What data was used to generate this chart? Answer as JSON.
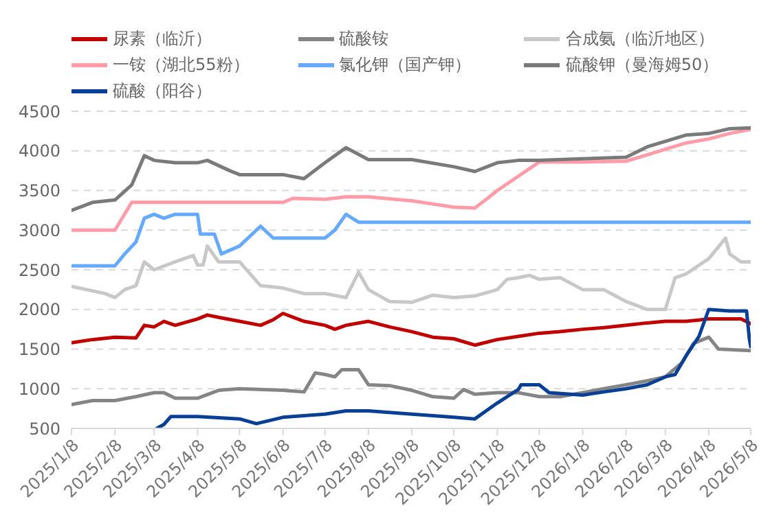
{
  "chart_data": {
    "type": "line",
    "legend": "top",
    "grid": "y",
    "line_style": "solid",
    "marker": "none",
    "xlim": [
      "2025-01-08",
      "2026-05-08"
    ],
    "xticks": [
      {
        "value": "2025-01-08",
        "label": "2025/1/8"
      },
      {
        "value": "2025-02-08",
        "label": "2025/2/8"
      },
      {
        "value": "2025-03-08",
        "label": "2025/3/8"
      },
      {
        "value": "2025-04-08",
        "label": "2025/4/8"
      },
      {
        "value": "2025-05-08",
        "label": "2025/5/8"
      },
      {
        "value": "2025-06-08",
        "label": "2025/6/8"
      },
      {
        "value": "2025-07-08",
        "label": "2025/7/8"
      },
      {
        "value": "2025-08-08",
        "label": "2025/8/8"
      },
      {
        "value": "2025-09-08",
        "label": "2025/9/8"
      },
      {
        "value": "2025-10-08",
        "label": "2025/10/8"
      },
      {
        "value": "2025-11-08",
        "label": "2025/11/8"
      },
      {
        "value": "2025-12-08",
        "label": "2025/12/8"
      },
      {
        "value": "2026-01-08",
        "label": "2026/1/8"
      },
      {
        "value": "2026-02-08",
        "label": "2026/2/8"
      },
      {
        "value": "2026-03-08",
        "label": "2026/3/8"
      },
      {
        "value": "2026-04-08",
        "label": "2026/4/8"
      },
      {
        "value": "2026-05-08",
        "label": "2026/5/8"
      }
    ],
    "ylim": [
      500,
      4500
    ],
    "yticks": [
      500,
      1000,
      1500,
      2000,
      2500,
      3000,
      3500,
      4000,
      4500
    ],
    "series": [
      {
        "name": "尿素（临沂）",
        "color": "#c00000",
        "x": [
          "2025-01-08",
          "2025-01-23",
          "2025-02-08",
          "2025-02-23",
          "2025-03-01",
          "2025-03-08",
          "2025-03-15",
          "2025-03-23",
          "2025-04-08",
          "2025-04-15",
          "2025-04-23",
          "2025-05-08",
          "2025-05-23",
          "2025-06-01",
          "2025-06-08",
          "2025-06-23",
          "2025-07-08",
          "2025-07-15",
          "2025-07-23",
          "2025-08-08",
          "2025-08-23",
          "2025-09-08",
          "2025-09-23",
          "2025-10-08",
          "2025-10-23",
          "2025-11-08",
          "2025-11-23",
          "2025-12-08",
          "2025-12-23",
          "2026-01-08",
          "2026-01-23",
          "2026-02-08",
          "2026-02-23",
          "2026-03-08",
          "2026-03-23",
          "2026-04-08",
          "2026-04-23",
          "2026-05-01",
          "2026-05-08"
        ],
        "values": [
          1580,
          1620,
          1650,
          1640,
          1800,
          1780,
          1850,
          1800,
          1880,
          1930,
          1900,
          1850,
          1800,
          1870,
          1950,
          1850,
          1800,
          1750,
          1800,
          1850,
          1780,
          1720,
          1650,
          1630,
          1550,
          1620,
          1660,
          1700,
          1720,
          1750,
          1770,
          1800,
          1830,
          1850,
          1850,
          1880,
          1880,
          1880,
          1820
        ]
      },
      {
        "name": "硫酸铵",
        "color": "#858585",
        "x": [
          "2025-01-08",
          "2025-01-23",
          "2025-02-08",
          "2025-02-23",
          "2025-03-08",
          "2025-03-15",
          "2025-03-23",
          "2025-04-08",
          "2025-04-23",
          "2025-05-08",
          "2025-06-08",
          "2025-06-23",
          "2025-07-01",
          "2025-07-08",
          "2025-07-15",
          "2025-07-20",
          "2025-08-01",
          "2025-08-08",
          "2025-08-23",
          "2025-09-08",
          "2025-09-23",
          "2025-10-08",
          "2025-10-15",
          "2025-10-23",
          "2025-11-08",
          "2025-11-23",
          "2025-12-08",
          "2025-12-23",
          "2026-01-08",
          "2026-01-23",
          "2026-02-08",
          "2026-02-23",
          "2026-03-08",
          "2026-03-20",
          "2026-03-28",
          "2026-04-08",
          "2026-04-15",
          "2026-05-08"
        ],
        "values": [
          800,
          850,
          850,
          900,
          950,
          950,
          880,
          880,
          980,
          1000,
          980,
          960,
          1200,
          1180,
          1150,
          1240,
          1240,
          1050,
          1040,
          980,
          900,
          880,
          990,
          930,
          950,
          950,
          900,
          900,
          950,
          1000,
          1050,
          1100,
          1150,
          1330,
          1570,
          1650,
          1500,
          1480
        ]
      },
      {
        "name": "合成氨（临沂地区）",
        "color": "#c8c8c8",
        "x": [
          "2025-01-08",
          "2025-02-01",
          "2025-02-08",
          "2025-02-15",
          "2025-02-23",
          "2025-03-01",
          "2025-03-08",
          "2025-03-23",
          "2025-04-05",
          "2025-04-08",
          "2025-04-12",
          "2025-04-15",
          "2025-04-23",
          "2025-05-08",
          "2025-05-23",
          "2025-06-08",
          "2025-06-23",
          "2025-07-08",
          "2025-07-23",
          "2025-08-01",
          "2025-08-08",
          "2025-08-23",
          "2025-09-08",
          "2025-09-23",
          "2025-10-08",
          "2025-10-23",
          "2025-11-08",
          "2025-11-15",
          "2025-11-23",
          "2025-12-01",
          "2025-12-08",
          "2025-12-23",
          "2026-01-08",
          "2026-01-23",
          "2026-02-08",
          "2026-02-23",
          "2026-03-08",
          "2026-03-15",
          "2026-03-23",
          "2026-04-08",
          "2026-04-20",
          "2026-04-23",
          "2026-05-01",
          "2026-05-08"
        ],
        "values": [
          2290,
          2200,
          2150,
          2250,
          2300,
          2600,
          2500,
          2600,
          2680,
          2560,
          2560,
          2800,
          2600,
          2600,
          2300,
          2270,
          2200,
          2200,
          2150,
          2470,
          2250,
          2100,
          2090,
          2180,
          2150,
          2170,
          2250,
          2380,
          2400,
          2430,
          2380,
          2400,
          2250,
          2250,
          2100,
          2000,
          2000,
          2400,
          2450,
          2640,
          2900,
          2700,
          2600,
          2600
        ]
      },
      {
        "name": "一铵（湖北55粉）",
        "color": "#ff9ca8",
        "x": [
          "2025-01-08",
          "2025-02-08",
          "2025-02-20",
          "2025-03-08",
          "2025-06-08",
          "2025-06-15",
          "2025-07-08",
          "2025-07-23",
          "2025-08-08",
          "2025-08-20",
          "2025-09-08",
          "2025-09-23",
          "2025-10-08",
          "2025-10-23",
          "2025-11-01",
          "2025-11-08",
          "2025-11-23",
          "2025-12-08",
          "2026-01-08",
          "2026-02-08",
          "2026-02-23",
          "2026-03-08",
          "2026-03-23",
          "2026-04-08",
          "2026-04-23",
          "2026-05-08"
        ],
        "values": [
          3000,
          3000,
          3350,
          3350,
          3350,
          3400,
          3390,
          3420,
          3420,
          3400,
          3370,
          3330,
          3290,
          3280,
          3400,
          3500,
          3680,
          3860,
          3860,
          3870,
          3950,
          4020,
          4100,
          4150,
          4220,
          4270
        ]
      },
      {
        "name": "氯化钾（国产钾）",
        "color": "#66aaff",
        "x": [
          "2025-01-08",
          "2025-02-08",
          "2025-02-15",
          "2025-02-23",
          "2025-03-01",
          "2025-03-08",
          "2025-03-15",
          "2025-03-23",
          "2025-04-08",
          "2025-04-10",
          "2025-04-20",
          "2025-04-25",
          "2025-05-08",
          "2025-05-23",
          "2025-06-01",
          "2025-07-08",
          "2025-07-15",
          "2025-07-23",
          "2025-08-01",
          "2026-05-08"
        ],
        "values": [
          2550,
          2550,
          2700,
          2850,
          3150,
          3200,
          3150,
          3200,
          3200,
          2950,
          2950,
          2700,
          2800,
          3050,
          2900,
          2900,
          3000,
          3200,
          3100,
          3100
        ]
      },
      {
        "name": "硫酸钾（曼海姆50）",
        "color": "#7a7a7a",
        "x": [
          "2025-01-08",
          "2025-01-23",
          "2025-02-08",
          "2025-02-20",
          "2025-03-01",
          "2025-03-08",
          "2025-03-23",
          "2025-04-08",
          "2025-04-15",
          "2025-05-01",
          "2025-05-08",
          "2025-06-08",
          "2025-06-23",
          "2025-07-08",
          "2025-07-23",
          "2025-08-08",
          "2025-09-08",
          "2025-10-08",
          "2025-10-23",
          "2025-11-08",
          "2025-11-23",
          "2025-12-08",
          "2026-01-08",
          "2026-02-08",
          "2026-02-23",
          "2026-03-08",
          "2026-03-23",
          "2026-04-08",
          "2026-04-23",
          "2026-05-08"
        ],
        "values": [
          3250,
          3350,
          3380,
          3570,
          3940,
          3880,
          3850,
          3850,
          3880,
          3750,
          3700,
          3700,
          3650,
          3850,
          4040,
          3890,
          3890,
          3800,
          3740,
          3850,
          3880,
          3880,
          3900,
          3920,
          4050,
          4120,
          4200,
          4220,
          4280,
          4290
        ]
      },
      {
        "name": "硫酸（阳谷）",
        "color": "#0a3f96",
        "x": [
          "2025-03-10",
          "2025-03-15",
          "2025-03-20",
          "2025-04-08",
          "2025-05-08",
          "2025-05-20",
          "2025-06-08",
          "2025-07-08",
          "2025-07-23",
          "2025-08-08",
          "2025-09-08",
          "2025-10-08",
          "2025-10-23",
          "2025-11-08",
          "2025-11-23",
          "2025-11-25",
          "2025-12-08",
          "2025-12-15",
          "2026-01-08",
          "2026-01-23",
          "2026-02-08",
          "2026-02-23",
          "2026-03-08",
          "2026-03-15",
          "2026-03-23",
          "2026-04-01",
          "2026-04-08",
          "2026-04-23",
          "2026-05-05",
          "2026-05-07",
          "2026-05-08"
        ],
        "values": [
          500,
          550,
          650,
          650,
          620,
          560,
          640,
          680,
          720,
          720,
          680,
          640,
          620,
          820,
          990,
          1050,
          1050,
          950,
          920,
          960,
          1000,
          1050,
          1150,
          1180,
          1420,
          1660,
          2000,
          1980,
          1980,
          1630,
          1530
        ]
      }
    ]
  }
}
